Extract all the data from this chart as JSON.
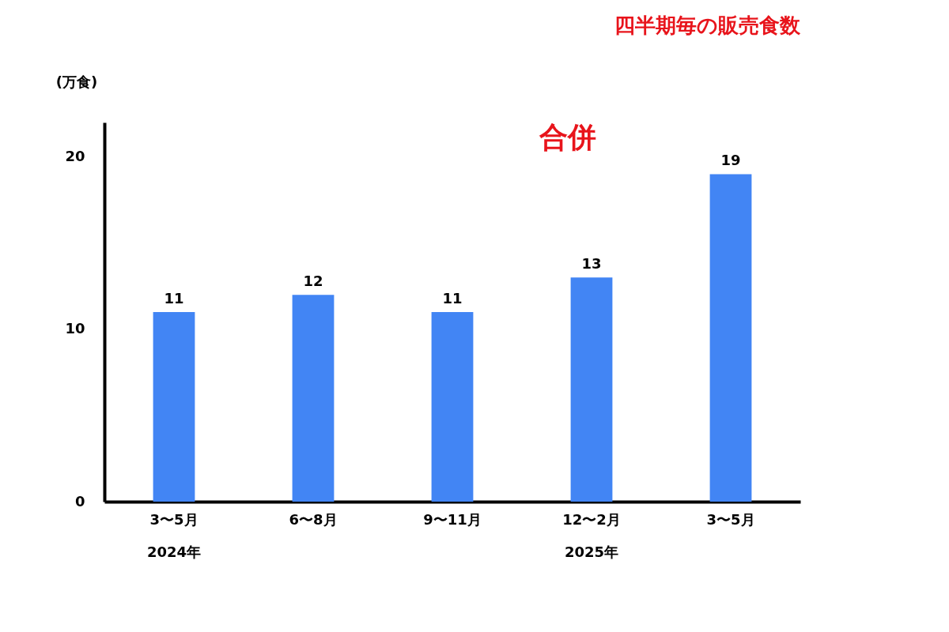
{
  "chart_data": {
    "type": "bar",
    "title": "四半期毎の販売食数",
    "ylabel": "(万食)",
    "categories": [
      "3〜5月",
      "6〜8月",
      "9〜11月",
      "12〜2月",
      "3〜5月"
    ],
    "values": [
      11,
      12,
      11,
      13,
      19
    ],
    "color": "#4285f4",
    "ylim": [
      0,
      22
    ],
    "yticks": [
      0,
      10,
      20
    ],
    "grid": false,
    "data_labels": true,
    "annotations": [
      "2024年",
      "2025年",
      "合併"
    ]
  }
}
